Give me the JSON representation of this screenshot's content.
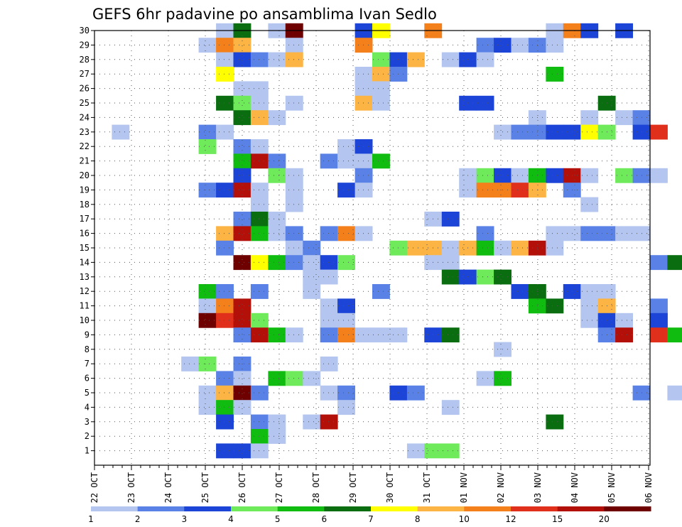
{
  "chart_data": {
    "type": "heatmap",
    "title": "GEFS 6hr padavine po ansamblima Ivan Sedlo",
    "y_ticks": [
      "1",
      "2",
      "3",
      "4",
      "5",
      "6",
      "7",
      "8",
      "9",
      "10",
      "11",
      "12",
      "13",
      "14",
      "15",
      "16",
      "17",
      "18",
      "19",
      "20",
      "21",
      "22",
      "23",
      "24",
      "25",
      "26",
      "27",
      "28",
      "29",
      "30"
    ],
    "x_ticks": [
      "22 OCT",
      "23 OCT",
      "24 OCT",
      "25 OCT",
      "26 OCT",
      "27 OCT",
      "28 OCT",
      "29 OCT",
      "30 OCT",
      "31 OCT",
      "01 NOV",
      "02 NOV",
      "03 NOV",
      "04 NOV",
      "05 NOV",
      "06 NOV"
    ],
    "x_steps_per_day": 4,
    "x_range_steps": [
      0,
      60
    ],
    "y_range": [
      0,
      30
    ],
    "grid": true,
    "legend": {
      "labels": [
        "1",
        "2",
        "3",
        "4",
        "5",
        "6",
        "7",
        "8",
        "10",
        "12",
        "15",
        "20"
      ],
      "colors": [
        "#b4c6ef",
        "#5a82e6",
        "#1c44d6",
        "#6eea5a",
        "#10bc10",
        "#0a6e10",
        "#ffff00",
        "#fcb444",
        "#f4801c",
        "#e0301c",
        "#b4100a",
        "#6e0000"
      ]
    },
    "cells": [
      [
        7,
        30,
        1
      ],
      [
        8,
        30,
        6
      ],
      [
        10,
        30,
        1
      ],
      [
        11,
        30,
        12
      ],
      [
        15,
        30,
        3
      ],
      [
        16,
        30,
        7
      ],
      [
        19,
        30,
        9
      ],
      [
        26,
        30,
        1
      ],
      [
        27,
        30,
        9
      ],
      [
        28,
        30,
        3
      ],
      [
        30,
        30,
        3
      ],
      [
        6,
        29,
        1
      ],
      [
        7,
        29,
        9
      ],
      [
        8,
        29,
        8
      ],
      [
        11,
        29,
        1
      ],
      [
        15,
        29,
        9
      ],
      [
        22,
        29,
        2
      ],
      [
        23,
        29,
        3
      ],
      [
        24,
        29,
        1
      ],
      [
        25,
        29,
        2
      ],
      [
        26,
        29,
        1
      ],
      [
        7,
        28,
        1
      ],
      [
        8,
        28,
        3
      ],
      [
        9,
        28,
        2
      ],
      [
        10,
        28,
        1
      ],
      [
        11,
        28,
        8
      ],
      [
        16,
        28,
        4
      ],
      [
        17,
        28,
        3
      ],
      [
        18,
        28,
        8
      ],
      [
        20,
        28,
        1
      ],
      [
        21,
        28,
        3
      ],
      [
        22,
        28,
        1
      ],
      [
        7,
        27,
        7
      ],
      [
        15,
        27,
        1
      ],
      [
        16,
        27,
        8
      ],
      [
        17,
        27,
        2
      ],
      [
        26,
        27,
        5
      ],
      [
        8,
        26,
        1
      ],
      [
        9,
        26,
        1
      ],
      [
        15,
        26,
        1
      ],
      [
        16,
        26,
        1
      ],
      [
        7,
        25,
        6
      ],
      [
        8,
        25,
        4
      ],
      [
        9,
        25,
        1
      ],
      [
        11,
        25,
        1
      ],
      [
        15,
        25,
        8
      ],
      [
        16,
        25,
        1
      ],
      [
        21,
        25,
        3
      ],
      [
        22,
        25,
        3
      ],
      [
        29,
        25,
        6
      ],
      [
        8,
        24,
        6
      ],
      [
        9,
        24,
        8
      ],
      [
        10,
        24,
        1
      ],
      [
        25,
        24,
        1
      ],
      [
        28,
        24,
        1
      ],
      [
        30,
        24,
        1
      ],
      [
        31,
        24,
        2
      ],
      [
        1,
        23,
        1
      ],
      [
        6,
        23,
        2
      ],
      [
        7,
        23,
        1
      ],
      [
        23,
        23,
        1
      ],
      [
        24,
        23,
        2
      ],
      [
        25,
        23,
        2
      ],
      [
        26,
        23,
        3
      ],
      [
        27,
        23,
        3
      ],
      [
        28,
        23,
        7
      ],
      [
        29,
        23,
        4
      ],
      [
        31,
        23,
        3
      ],
      [
        32,
        23,
        10
      ],
      [
        6,
        22,
        4
      ],
      [
        8,
        22,
        2
      ],
      [
        9,
        22,
        1
      ],
      [
        14,
        22,
        1
      ],
      [
        15,
        22,
        3
      ],
      [
        8,
        21,
        5
      ],
      [
        9,
        21,
        11
      ],
      [
        10,
        21,
        2
      ],
      [
        13,
        21,
        2
      ],
      [
        14,
        21,
        1
      ],
      [
        15,
        21,
        1
      ],
      [
        16,
        21,
        5
      ],
      [
        8,
        20,
        3
      ],
      [
        10,
        20,
        4
      ],
      [
        11,
        20,
        1
      ],
      [
        15,
        20,
        2
      ],
      [
        21,
        20,
        1
      ],
      [
        22,
        20,
        4
      ],
      [
        23,
        20,
        3
      ],
      [
        24,
        20,
        1
      ],
      [
        25,
        20,
        5
      ],
      [
        26,
        20,
        3
      ],
      [
        27,
        20,
        11
      ],
      [
        28,
        20,
        1
      ],
      [
        30,
        20,
        4
      ],
      [
        31,
        20,
        2
      ],
      [
        32,
        20,
        1
      ],
      [
        6,
        19,
        2
      ],
      [
        7,
        19,
        3
      ],
      [
        8,
        19,
        11
      ],
      [
        9,
        19,
        1
      ],
      [
        11,
        19,
        1
      ],
      [
        14,
        19,
        3
      ],
      [
        15,
        19,
        1
      ],
      [
        21,
        19,
        1
      ],
      [
        22,
        19,
        9
      ],
      [
        23,
        19,
        9
      ],
      [
        24,
        19,
        10
      ],
      [
        25,
        19,
        8
      ],
      [
        27,
        19,
        2
      ],
      [
        9,
        18,
        1
      ],
      [
        11,
        18,
        1
      ],
      [
        28,
        18,
        1
      ],
      [
        8,
        17,
        2
      ],
      [
        9,
        17,
        6
      ],
      [
        10,
        17,
        1
      ],
      [
        19,
        17,
        1
      ],
      [
        20,
        17,
        3
      ],
      [
        7,
        16,
        8
      ],
      [
        8,
        16,
        11
      ],
      [
        9,
        16,
        5
      ],
      [
        10,
        16,
        1
      ],
      [
        11,
        16,
        2
      ],
      [
        13,
        16,
        2
      ],
      [
        14,
        16,
        9
      ],
      [
        15,
        16,
        1
      ],
      [
        22,
        16,
        2
      ],
      [
        26,
        16,
        1
      ],
      [
        27,
        16,
        1
      ],
      [
        28,
        16,
        2
      ],
      [
        29,
        16,
        2
      ],
      [
        30,
        16,
        1
      ],
      [
        31,
        16,
        1
      ],
      [
        7,
        15,
        2
      ],
      [
        11,
        15,
        1
      ],
      [
        12,
        15,
        2
      ],
      [
        17,
        15,
        4
      ],
      [
        18,
        15,
        8
      ],
      [
        19,
        15,
        8
      ],
      [
        20,
        15,
        1
      ],
      [
        21,
        15,
        8
      ],
      [
        22,
        15,
        5
      ],
      [
        23,
        15,
        1
      ],
      [
        24,
        15,
        8
      ],
      [
        25,
        15,
        11
      ],
      [
        26,
        15,
        1
      ],
      [
        8,
        14,
        12
      ],
      [
        9,
        14,
        7
      ],
      [
        10,
        14,
        5
      ],
      [
        11,
        14,
        2
      ],
      [
        12,
        14,
        1
      ],
      [
        13,
        14,
        3
      ],
      [
        14,
        14,
        4
      ],
      [
        19,
        14,
        1
      ],
      [
        20,
        14,
        1
      ],
      [
        32,
        14,
        2
      ],
      [
        33,
        14,
        6
      ],
      [
        12,
        13,
        1
      ],
      [
        13,
        13,
        1
      ],
      [
        20,
        13,
        6
      ],
      [
        21,
        13,
        3
      ],
      [
        22,
        13,
        4
      ],
      [
        23,
        13,
        6
      ],
      [
        6,
        12,
        5
      ],
      [
        7,
        12,
        2
      ],
      [
        9,
        12,
        2
      ],
      [
        12,
        12,
        1
      ],
      [
        16,
        12,
        2
      ],
      [
        24,
        12,
        3
      ],
      [
        25,
        12,
        6
      ],
      [
        27,
        12,
        3
      ],
      [
        28,
        12,
        1
      ],
      [
        29,
        12,
        1
      ],
      [
        6,
        11,
        1
      ],
      [
        7,
        11,
        9
      ],
      [
        8,
        11,
        11
      ],
      [
        13,
        11,
        1
      ],
      [
        14,
        11,
        3
      ],
      [
        25,
        11,
        5
      ],
      [
        26,
        11,
        6
      ],
      [
        28,
        11,
        1
      ],
      [
        29,
        11,
        8
      ],
      [
        32,
        11,
        2
      ],
      [
        6,
        10,
        12
      ],
      [
        7,
        10,
        10
      ],
      [
        8,
        10,
        11
      ],
      [
        9,
        10,
        4
      ],
      [
        13,
        10,
        1
      ],
      [
        14,
        10,
        1
      ],
      [
        28,
        10,
        1
      ],
      [
        29,
        10,
        3
      ],
      [
        30,
        10,
        1
      ],
      [
        32,
        10,
        3
      ],
      [
        8,
        9,
        2
      ],
      [
        9,
        9,
        11
      ],
      [
        10,
        9,
        5
      ],
      [
        11,
        9,
        1
      ],
      [
        13,
        9,
        2
      ],
      [
        14,
        9,
        9
      ],
      [
        15,
        9,
        1
      ],
      [
        16,
        9,
        1
      ],
      [
        17,
        9,
        1
      ],
      [
        19,
        9,
        3
      ],
      [
        20,
        9,
        6
      ],
      [
        29,
        9,
        2
      ],
      [
        30,
        9,
        11
      ],
      [
        32,
        9,
        10
      ],
      [
        33,
        9,
        5
      ],
      [
        23,
        8,
        1
      ],
      [
        5,
        7,
        1
      ],
      [
        6,
        7,
        4
      ],
      [
        8,
        7,
        2
      ],
      [
        13,
        7,
        1
      ],
      [
        7,
        6,
        2
      ],
      [
        8,
        6,
        1
      ],
      [
        10,
        6,
        5
      ],
      [
        11,
        6,
        4
      ],
      [
        12,
        6,
        1
      ],
      [
        22,
        6,
        1
      ],
      [
        23,
        6,
        5
      ],
      [
        6,
        5,
        1
      ],
      [
        7,
        5,
        8
      ],
      [
        8,
        5,
        12
      ],
      [
        9,
        5,
        2
      ],
      [
        13,
        5,
        1
      ],
      [
        14,
        5,
        2
      ],
      [
        17,
        5,
        3
      ],
      [
        18,
        5,
        2
      ],
      [
        31,
        5,
        2
      ],
      [
        33,
        5,
        1
      ],
      [
        6,
        4,
        1
      ],
      [
        7,
        4,
        5
      ],
      [
        8,
        4,
        1
      ],
      [
        14,
        4,
        1
      ],
      [
        20,
        4,
        1
      ],
      [
        7,
        3,
        3
      ],
      [
        9,
        3,
        2
      ],
      [
        10,
        3,
        1
      ],
      [
        12,
        3,
        1
      ],
      [
        13,
        3,
        11
      ],
      [
        26,
        3,
        6
      ],
      [
        9,
        2,
        5
      ],
      [
        10,
        2,
        1
      ],
      [
        7,
        1,
        3
      ],
      [
        8,
        1,
        3
      ],
      [
        9,
        1,
        1
      ],
      [
        18,
        1,
        1
      ],
      [
        19,
        1,
        4
      ],
      [
        20,
        1,
        4
      ]
    ]
  }
}
